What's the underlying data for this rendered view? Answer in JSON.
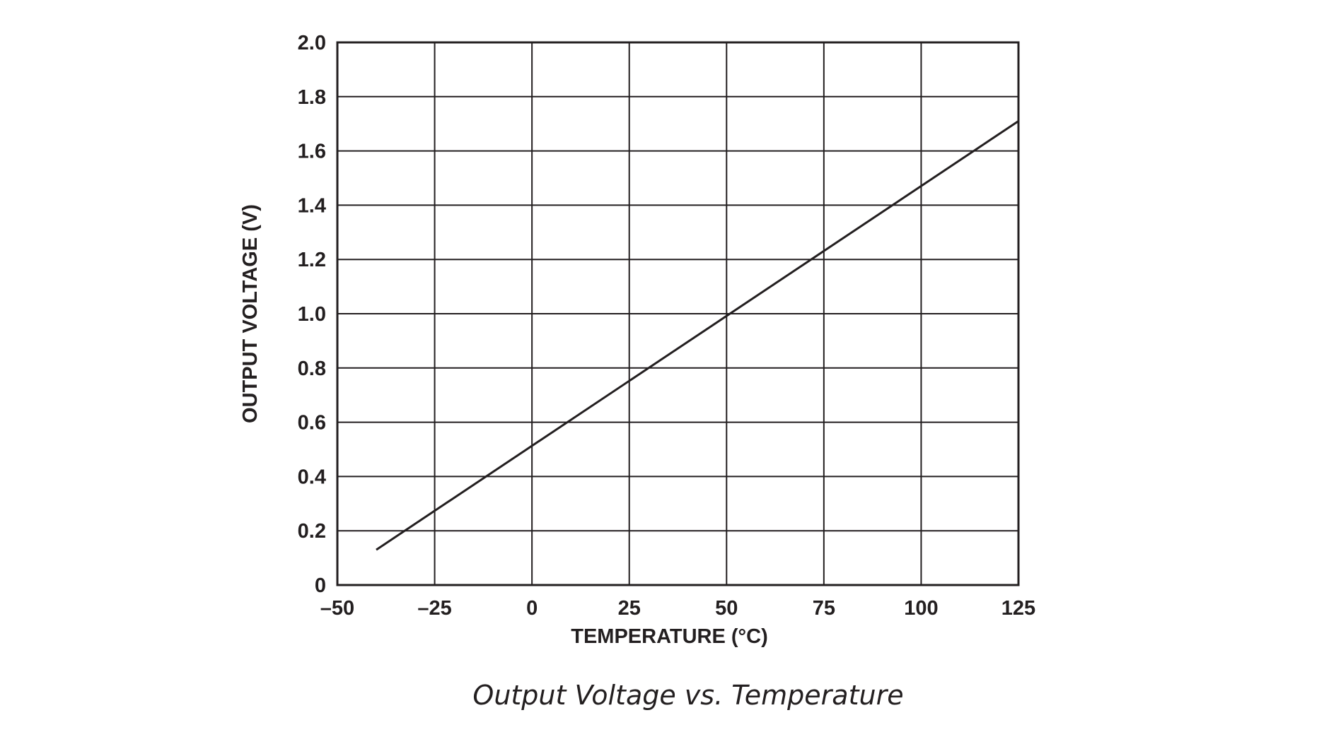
{
  "chart_data": {
    "type": "line",
    "title": "Output Voltage vs. Temperature",
    "xlabel": "TEMPERATURE (°C)",
    "ylabel": "OUTPUT VOLTAGE (V)",
    "xlim": [
      -50,
      125
    ],
    "ylim": [
      0,
      2.0
    ],
    "grid": true,
    "x_ticks": [
      -50,
      -25,
      0,
      25,
      50,
      75,
      100,
      125
    ],
    "x_tick_labels": [
      "–50",
      "–25",
      "0",
      "25",
      "50",
      "75",
      "100",
      "125"
    ],
    "y_ticks": [
      0,
      0.2,
      0.4,
      0.6,
      0.8,
      1.0,
      1.2,
      1.4,
      1.6,
      1.8,
      2.0
    ],
    "y_tick_labels": [
      "0",
      "0.2",
      "0.4",
      "0.6",
      "0.8",
      "1.0",
      "1.2",
      "1.4",
      "1.6",
      "1.8",
      "2.0"
    ],
    "series": [
      {
        "x": [
          -40,
          125
        ],
        "y": [
          0.13,
          1.71
        ],
        "color": "#231f20"
      }
    ]
  }
}
